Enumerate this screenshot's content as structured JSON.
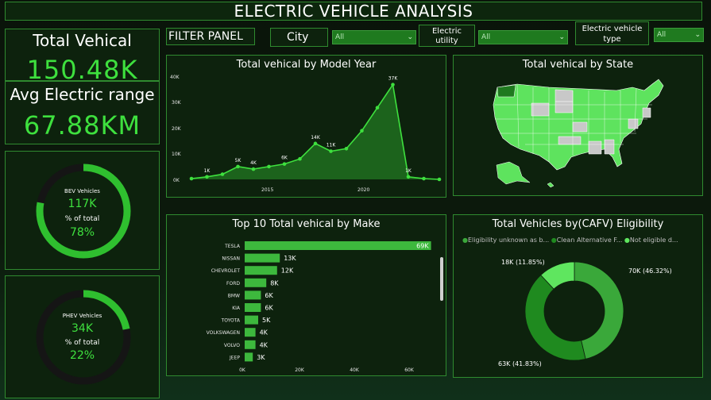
{
  "title": "ELECTRIC VEHICLE ANALYSIS",
  "kpi": {
    "total_label": "Total Vehical",
    "total_value": "150.48K",
    "range_label": "Avg Electric range",
    "range_value": "67.88KM"
  },
  "donuts": [
    {
      "name": "BEV Vehicles",
      "value": "117K",
      "pct_label": "% of total",
      "pct": "78%",
      "fraction": 0.78
    },
    {
      "name": "PHEV Vehicles",
      "value": "34K",
      "pct_label": "% of total",
      "pct": "22%",
      "fraction": 0.22
    }
  ],
  "filters": {
    "panel_label": "FILTER PANEL",
    "city_label": "City",
    "city_value": "All",
    "utility_label": "Electric utility",
    "utility_value": "All",
    "type_label": "Electric vehicle type",
    "type_value": "All"
  },
  "colors": {
    "accent": "#3ee03e",
    "panel_border": "#2f8a2f",
    "bar": "#3db83d",
    "ring_bg": "#151515"
  },
  "model_year_chart": {
    "title": "Total vehical by Model Year",
    "y_ticks": [
      "40K",
      "30K",
      "20K",
      "10K",
      "0K"
    ],
    "x_ticks": [
      "2015",
      "2020"
    ],
    "chart_data": {
      "type": "area",
      "x": [
        2008,
        2009,
        2010,
        2011,
        2012,
        2013,
        2014,
        2015,
        2016,
        2017,
        2018,
        2019,
        2020,
        2021,
        2022,
        2023,
        2024
      ],
      "y": [
        0.3,
        1,
        2,
        5,
        4,
        5,
        6,
        8,
        14,
        11,
        12,
        19,
        28,
        37,
        1,
        0.3,
        0
      ],
      "data_labels": [
        {
          "x": 2009,
          "text": "1K"
        },
        {
          "x": 2011,
          "text": "5K"
        },
        {
          "x": 2012,
          "text": "4K"
        },
        {
          "x": 2014,
          "text": "6K"
        },
        {
          "x": 2016,
          "text": "14K"
        },
        {
          "x": 2017,
          "text": "11K"
        },
        {
          "x": 2021,
          "text": "37K"
        },
        {
          "x": 2022,
          "text": "1K"
        }
      ],
      "ylim": [
        0,
        40
      ]
    }
  },
  "state_map": {
    "title": "Total vehical by State"
  },
  "make_chart": {
    "title": "Top 10 Total vehical by Make",
    "x_ticks": [
      "0K",
      "20K",
      "40K",
      "60K"
    ],
    "chart_data": {
      "type": "bar",
      "categories": [
        "TESLA",
        "NISSAN",
        "CHEVROLET",
        "FORD",
        "BMW",
        "KIA",
        "TOYOTA",
        "VOLKSWAGEN",
        "VOLVO",
        "JEEP"
      ],
      "values": [
        69,
        13,
        12,
        8,
        6,
        6,
        5,
        4,
        4,
        3
      ],
      "value_labels": [
        "69K",
        "13K",
        "12K",
        "8K",
        "6K",
        "6K",
        "5K",
        "4K",
        "4K",
        "3K"
      ],
      "xlim": [
        0,
        70
      ]
    }
  },
  "cafv_chart": {
    "title": "Total Vehicles by(CAFV) Eligibility",
    "legend": [
      "Eligibility unknown as b...",
      "Clean Alternative F...",
      "Not eligible d..."
    ],
    "chart_data": {
      "type": "pie",
      "labels": [
        "Eligibility unknown as b...",
        "Clean Alternative F...",
        "Not eligible d..."
      ],
      "values": [
        70,
        63,
        18
      ],
      "value_labels": [
        "70K (46.32%)",
        "63K (41.83%)",
        "18K (11.85%)"
      ],
      "colors": [
        "#3aa83a",
        "#1f8a1f",
        "#5fe65f"
      ]
    }
  }
}
